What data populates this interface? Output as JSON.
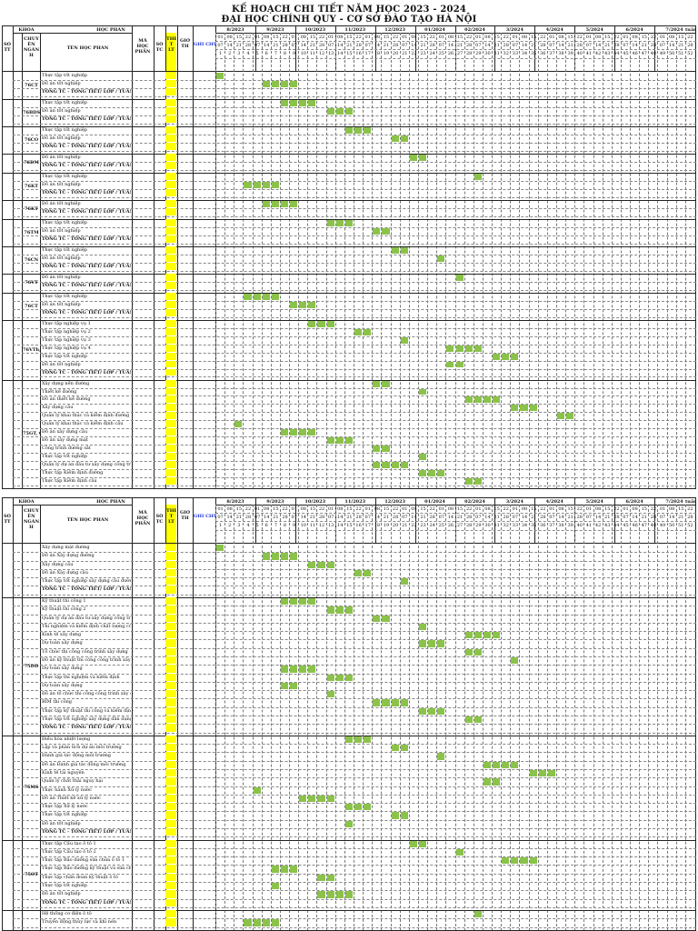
{
  "title_line1": "KẾ HOẠCH CHI TIẾT NĂM HỌC 2023 - 2024",
  "title_line2": "ĐẠI HỌC CHÍNH QUY - CƠ SỞ ĐÀO TẠO HÀ NỘI",
  "headers": {
    "so_tt": "SỐ TT",
    "khoa": "KHÓA",
    "chuyen_nganh": "CHUY ÊN NGÀN H",
    "hoc_phan": "HỌC PHẦN",
    "ten_hoc_phan": "TÊN HỌC PHẦN",
    "ma_hoc_phan": "MÃ HỌC PHẦN",
    "so_tc": "SỐ TC",
    "thi_lt": "THỂ T LT",
    "gio_th": "GIỜ TH",
    "ghi_chu": "GHI CHÚ",
    "tuan": "tuần"
  },
  "months": [
    "8/2023",
    "9/2023",
    "10/2023",
    "11/2023",
    "12/2023",
    "01/2024",
    "02/2024",
    "3/2024",
    "4/2024",
    "5/2024",
    "6/2024",
    "7/2024"
  ],
  "page1_groups": [
    {
      "code": "76CT",
      "rows": [
        "Thực tập tốt nghiệp",
        "Đồ án tốt nghiệp",
        "TỔNG TC - TỔNG TIẾT/ LỚP / TUẦN"
      ]
    },
    {
      "code": "76BDS-D2",
      "rows": [
        "Thực tập tốt nghiệp",
        "Đồ án tốt nghiệp",
        "TỔNG TC - TỔNG TIẾT/ LỚP / TUẦN"
      ]
    },
    {
      "code": "76CO",
      "rows": [
        "Thực tập tốt nghiệp",
        "Đồ án tốt nghiệp",
        "TỔNG TC - TỔNG TIẾT/ LỚP / TUẦN"
      ]
    },
    {
      "code": "76DM",
      "rows": [
        "Đồ án tốt nghiệp",
        "TỔNG TC - TỔNG TIẾT/ LỚP / TUẦN"
      ]
    },
    {
      "code": "76KT",
      "rows": [
        "Thực tập tốt nghiệp",
        "Đồ án tốt nghiệp",
        "TỔNG TC - TỔNG TIẾT/ LỚP / TUẦN"
      ]
    },
    {
      "code": "76KT",
      "rows": [
        "Đồ án tốt nghiệp",
        "TỔNG TC - TỔNG TIẾT/ LỚP / TUẦN"
      ]
    },
    {
      "code": "76TM",
      "rows": [
        "Thực tập tốt nghiệp",
        "Đồ án tốt nghiệp",
        "TỔNG TC - TỔNG TIẾT/ LỚP / TUẦN"
      ]
    },
    {
      "code": "76CN",
      "rows": [
        "Thực tập tốt nghiệp",
        "Đồ án tốt nghiệp",
        "TỔNG TC - TỔNG TIẾT/ LỚP / TUẦN"
      ]
    },
    {
      "code": "76VT",
      "rows": [
        "Đồ án tốt nghiệp",
        "TỔNG TC - TỔNG TIẾT/ LỚP / TUẦN"
      ]
    },
    {
      "code": "76CT",
      "rows": [
        "Thực tập tốt nghiệp",
        "Đồ án tốt nghiệp",
        "TỔNG TC - TỔNG TIẾT/ LỚP / TUẦN"
      ]
    },
    {
      "code": "76VTh, 76VTr",
      "rows": [
        "Thực tập nghiệp vụ 1",
        "Thực tập nghiệp vụ 2",
        "Thực tập nghiệp vụ 3",
        "Thực tập nghiệp vụ 4",
        "Thực tập tốt nghiệp",
        "Đồ án tốt nghiệp",
        "TỔNG TC - TỔNG TIẾT/ LỚP / TUẦN"
      ]
    },
    {
      "code": "75GT, CĐP",
      "rows": [
        "Xây dựng nền đường",
        "Thiết kế đường",
        "Đồ án thiết kế đường",
        "Xây dựng cầu",
        "Quản lý khai thác và kiểm định đường",
        "Quản lý khai thác và kiểm định cầu",
        "Đồ án xây dựng cầu",
        "Đồ án xây dựng mặt",
        "Công trình đường sắt",
        "Thực tập tốt nghiệp",
        "Quản lý dự án đầu tư xây dựng công trình",
        "Thực tập Kiểm định đường",
        "Thực tập Kiểm định cầu"
      ]
    }
  ],
  "page2_groups": [
    {
      "code": "",
      "rows": [
        "Xây dựng mặt đường",
        "Đồ án Xây dựng đường",
        "Xây dựng cầu",
        "Đồ án Xây dựng cầu",
        "Thực tập tốt nghiệp xây dựng cầu đường",
        "TỔNG TC - TỔNG TIẾT/ LỚP / TUẦN"
      ]
    },
    {
      "code": "75DD",
      "rows": [
        "Kỹ thuật thi công 1",
        "Kỹ thuật thi công 2",
        "Quản lý dự án đầu tư xây dựng công trình",
        "Thí nghiệm và kiểm định chất lượng công trình",
        "Kinh tế xây dựng",
        "Dự toán xây dựng",
        "Tổ chức thi công công trình xây dựng",
        "Đồ án kỹ thuật thi công công trình xây dựng",
        "Dự toán xây dựng",
        "Thực tập thí nghiệm và kiểm định",
        "Dự toán xây dựng",
        "Đồ án tổ chức thi công công trình xây dựng",
        "BIM thi công",
        "Thực tập kỹ thuật thi công và kiểm định",
        "Thực tập tốt nghiệp xây dựng dân dụng",
        "TỔNG TC - TỔNG TIẾT/ LỚP / TUẦN"
      ]
    },
    {
      "code": "75MS",
      "rows": [
        "Điều hòa nhiệt lượng",
        "Lập và phân tích dự án môi trường",
        "Đánh giá tác động môi trường",
        "Đồ án Đánh giá tác động môi trường",
        "Kinh tế tài nguyên",
        "Quản lý chất thải nguy hại",
        "Thực hành Xử lý nước",
        "Đồ án Thiết kế xử lý nước",
        "Thực tập Xử lý nước",
        "Thực tập tốt nghiệp",
        "Đồ án tốt nghiệp",
        "TỔNG TC - TỔNG TIẾT/ LỚP / TUẦN"
      ]
    },
    {
      "code": "75OT",
      "rows": [
        "Thực tập Cấu tạo ô tô 1",
        "Thực tập Cấu tạo ô tô 2",
        "Thực tập Bảo dưỡng sửa chữa ô tô 1",
        "Thực tập Bảo dưỡng kỹ thuật và sửa chữa ô tô 2",
        "Thực tập chẩn đoán kỹ thuật ô tô",
        "Thực tập tốt nghiệp",
        "Đồ án tốt nghiệp",
        "TỔNG TC - TỔNG TIẾT/ LỚP / TUẦN"
      ]
    },
    {
      "code": "",
      "rows": [
        "Hệ thống cơ điện ô tô",
        "Truyền động thủy lực và khí nén"
      ]
    }
  ],
  "colors": {
    "yellow": "#ffff00",
    "green": "#8bc34a",
    "blue": "#1a33d6"
  }
}
